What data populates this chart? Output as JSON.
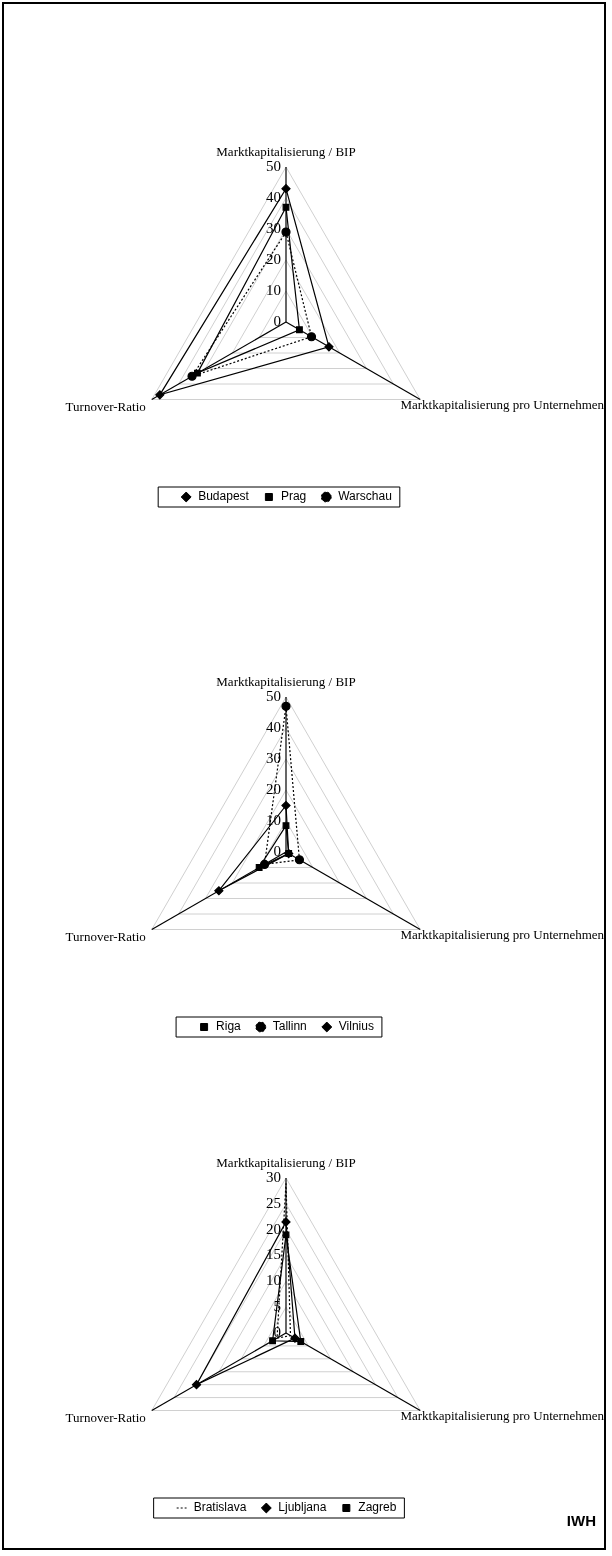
{
  "chart_data": [
    {
      "type": "radar",
      "categories": [
        "Marktkapitalisierung / BIP",
        "Marktkapitalisierung pro Unternehmen",
        "Turnover-Ratio"
      ],
      "ylim": [
        0,
        50
      ],
      "yticks": [
        0,
        10,
        20,
        30,
        40,
        50
      ],
      "legend": "bottom",
      "grid": true,
      "series": [
        {
          "name": "Budapest",
          "color": "#000000",
          "marker": "diamond",
          "line_style": "solid",
          "values": [
            43,
            16,
            47
          ]
        },
        {
          "name": "Prag",
          "color": "#000000",
          "marker": "square",
          "line_style": "solid",
          "values": [
            37,
            5,
            33
          ]
        },
        {
          "name": "Warschau",
          "color": "#000000",
          "marker": "circle",
          "line_style": "dotted",
          "values": [
            29,
            9.5,
            35
          ]
        }
      ]
    },
    {
      "type": "radar",
      "categories": [
        "Marktkapitalisierung / BIP",
        "Marktkapitalisierung pro Unternehmen",
        "Turnover-Ratio"
      ],
      "ylim": [
        0,
        50
      ],
      "yticks": [
        0,
        10,
        20,
        30,
        40,
        50
      ],
      "legend": "bottom",
      "grid": true,
      "series": [
        {
          "name": "Riga",
          "color": "#000000",
          "marker": "square",
          "line_style": "solid",
          "values": [
            8.5,
            1,
            10
          ]
        },
        {
          "name": "Tallinn",
          "color": "#000000",
          "marker": "circle",
          "line_style": "dotted",
          "values": [
            47,
            5,
            8
          ]
        },
        {
          "name": "Vilnius",
          "color": "#000000",
          "marker": "diamond",
          "line_style": "solid",
          "values": [
            15,
            1,
            25
          ]
        }
      ]
    },
    {
      "type": "radar",
      "categories": [
        "Marktkapitalisierung / BIP",
        "Marktkapitalisierung pro Unternehmen",
        "Turnover-Ratio"
      ],
      "ylim": [
        0,
        30
      ],
      "yticks": [
        0,
        5,
        10,
        15,
        20,
        25,
        30
      ],
      "legend": "bottom",
      "grid": true,
      "annotations": [
        "IWH"
      ],
      "series": [
        {
          "name": "Bratislava",
          "color": "#000000",
          "marker": "none",
          "line_style": "dotted",
          "values": [
            29,
            1,
            2
          ]
        },
        {
          "name": "Ljubljana",
          "color": "#000000",
          "marker": "diamond",
          "line_style": "solid",
          "values": [
            21.5,
            2,
            20
          ]
        },
        {
          "name": "Zagreb",
          "color": "#000000",
          "marker": "square",
          "line_style": "solid",
          "values": [
            19,
            3.3,
            3
          ]
        }
      ]
    }
  ]
}
